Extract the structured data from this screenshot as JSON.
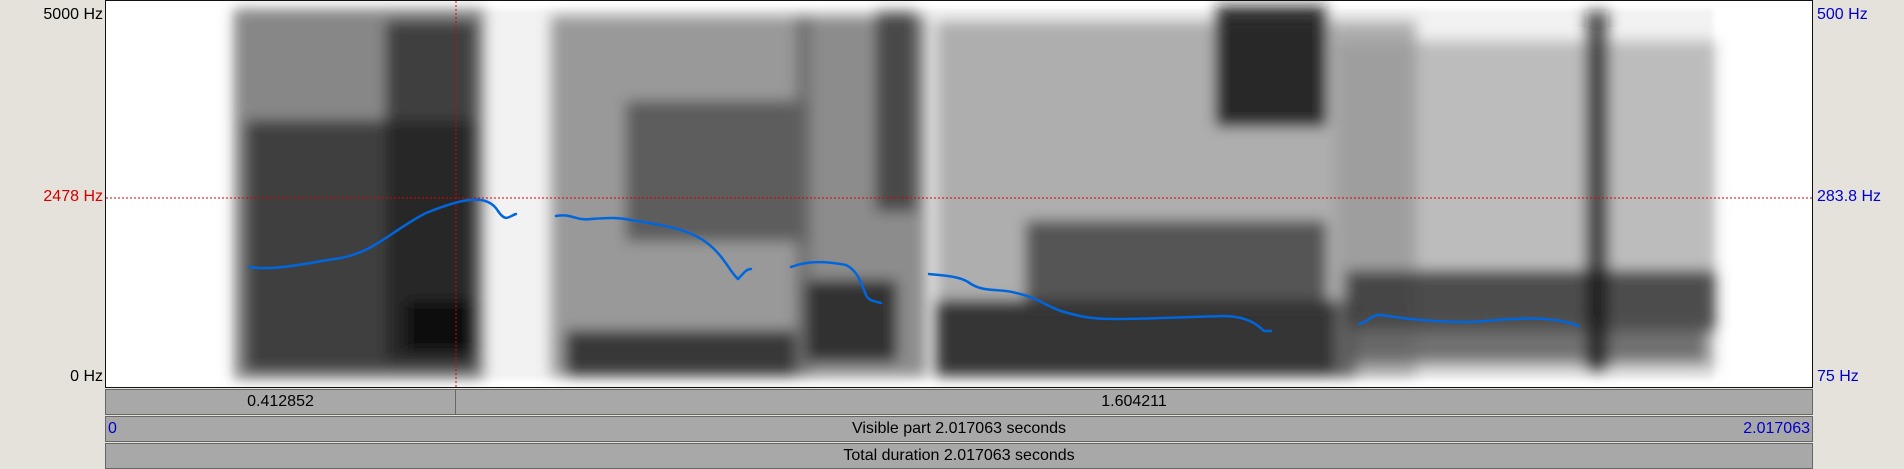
{
  "spectrogram": {
    "freq_axis_left": {
      "top": "5000 Hz",
      "cursor": "2478 Hz",
      "bottom": "0 Hz"
    },
    "pitch_axis_right": {
      "top": "500 Hz",
      "cursor": "283.8 Hz",
      "bottom": "75 Hz"
    },
    "colors": {
      "pitch_line": "#0066dd",
      "cursor": "#dd0000",
      "axis_right_text": "#0000cc"
    }
  },
  "selection_bar": {
    "left_segment": "0.412852",
    "right_segment": "1.604211"
  },
  "visible_bar": {
    "start": "0",
    "label": "Visible part 2.017063 seconds",
    "end": "2.017063"
  },
  "total_bar": {
    "label": "Total duration 2.017063 seconds"
  }
}
